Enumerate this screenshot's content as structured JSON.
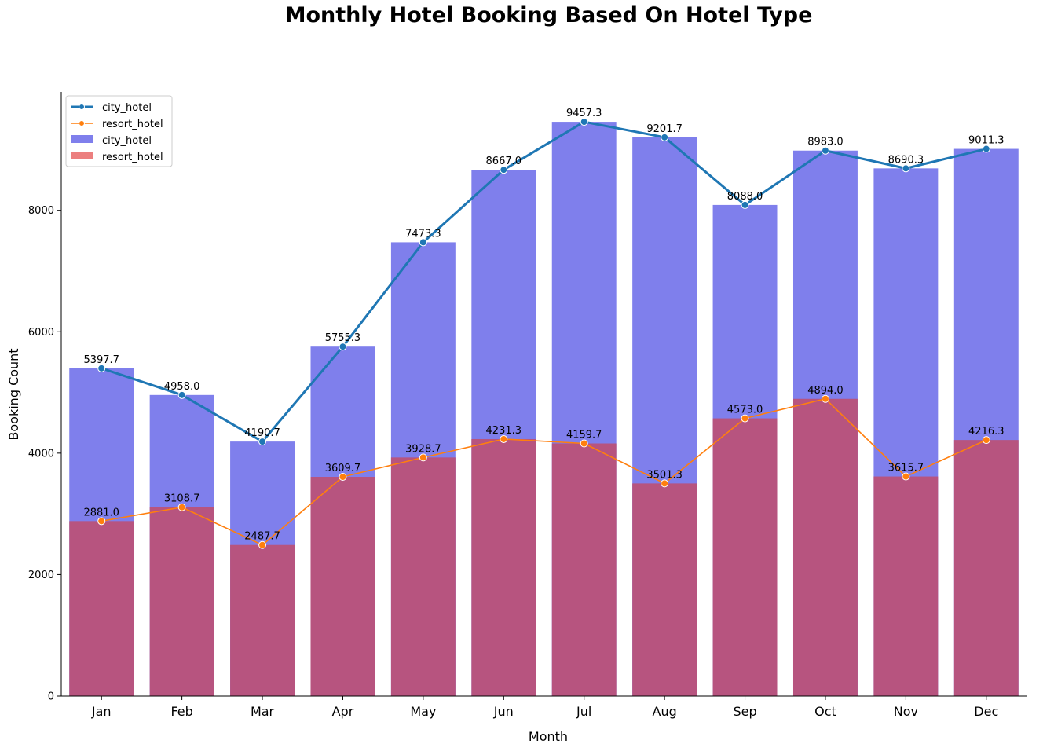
{
  "chart_data": {
    "type": "bar",
    "title": "Monthly Hotel Booking Based On Hotel Type",
    "xlabel": "Month",
    "ylabel": "Booking Count",
    "ylim": [
      0,
      9950
    ],
    "yticks": [
      0,
      2000,
      4000,
      6000,
      8000
    ],
    "grid": false,
    "legend_position": "top-left",
    "categories": [
      "Jan",
      "Feb",
      "Mar",
      "Apr",
      "May",
      "Jun",
      "Jul",
      "Aug",
      "Sep",
      "Oct",
      "Nov",
      "Dec"
    ],
    "series": [
      {
        "name": "city_hotel",
        "kind": "line",
        "color": "#1f77b4",
        "values": [
          5397.7,
          4958.0,
          4190.7,
          5755.3,
          7473.3,
          8667.0,
          9457.3,
          9201.7,
          8088.0,
          8983.0,
          8690.3,
          9011.3
        ],
        "labels": [
          "5397.7",
          "4958.0",
          "4190.7",
          "5755.3",
          "7473.3",
          "8667.0",
          "9457.3",
          "9201.7",
          "8088.0",
          "8983.0",
          "8690.3",
          "9011.3"
        ]
      },
      {
        "name": "resort_hotel",
        "kind": "line",
        "color": "#ff7f0e",
        "values": [
          2881.0,
          3108.7,
          2487.7,
          3609.7,
          3928.7,
          4231.3,
          4159.7,
          3501.3,
          4573.0,
          4894.0,
          3615.7,
          4216.3
        ],
        "labels": [
          "2881.0",
          "3108.7",
          "2487.7",
          "3609.7",
          "3928.7",
          "4231.3",
          "4159.7",
          "3501.3",
          "4573.0",
          "4894.0",
          "3615.7",
          "4216.3"
        ]
      },
      {
        "name": "city_hotel",
        "kind": "bar",
        "color": "#7f7fec",
        "values": [
          5397.7,
          4958.0,
          4190.7,
          5755.3,
          7473.3,
          8667.0,
          9457.3,
          9201.7,
          8088.0,
          8983.0,
          8690.3,
          9011.3
        ]
      },
      {
        "name": "resort_hotel",
        "kind": "bar",
        "color": "#ec7f7f",
        "values": [
          2881.0,
          3108.7,
          2487.7,
          3609.7,
          3928.7,
          4231.3,
          4159.7,
          3501.3,
          4573.0,
          4894.0,
          3615.7,
          4216.3
        ]
      }
    ],
    "overlap_color": "#b7547f"
  }
}
